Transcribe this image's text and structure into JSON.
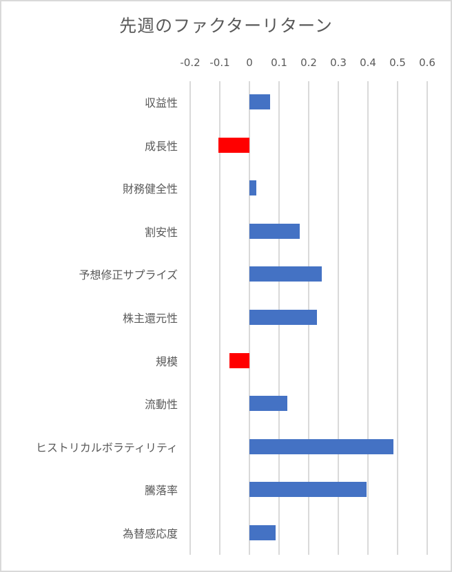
{
  "chart_data": {
    "type": "bar",
    "orientation": "horizontal",
    "title": "先週のファクターリターン",
    "xlabel": "",
    "ylabel": "",
    "xlim": [
      -0.2,
      0.6
    ],
    "x_ticks": [
      "-0.2",
      "-0.1",
      "0",
      "0.1",
      "0.2",
      "0.3",
      "0.4",
      "0.5",
      "0.6"
    ],
    "x_axis_position": "top",
    "grid": true,
    "legend": null,
    "categories": [
      "収益性",
      "成長性",
      "財務健全性",
      "割安性",
      "予想修正サプライズ",
      "株主還元性",
      "規模",
      "流動性",
      "ヒストリカルボラティリティ",
      "騰落率",
      "為替感応度"
    ],
    "values": [
      0.07,
      -0.105,
      0.023,
      0.17,
      0.244,
      0.228,
      -0.067,
      0.128,
      0.486,
      0.395,
      0.088
    ],
    "colors": {
      "positive": "#4472c4",
      "negative": "#ff0000",
      "grid": "#d9d9d9",
      "text": "#595959"
    }
  }
}
